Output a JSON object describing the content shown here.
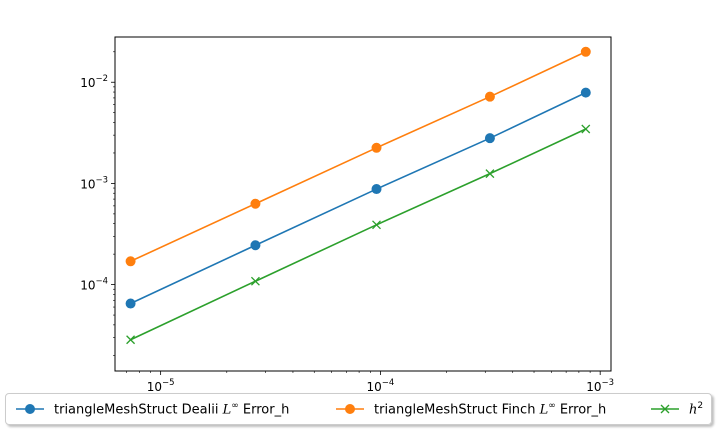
{
  "chart_data": {
    "type": "line",
    "xscale": "log",
    "yscale": "log",
    "xlim": [
      6.2e-06,
      0.00112
    ],
    "ylim": [
      1.4e-05,
      0.028
    ],
    "grid": false,
    "legend_placement": "bottom",
    "x_ticks": [
      {
        "base": "10",
        "exp": "−5",
        "value": 1e-05
      },
      {
        "base": "10",
        "exp": "−4",
        "value": 0.0001
      },
      {
        "base": "10",
        "exp": "−3",
        "value": 0.001
      }
    ],
    "y_ticks": [
      {
        "base": "10",
        "exp": "−4",
        "value": 0.0001
      },
      {
        "base": "10",
        "exp": "−3",
        "value": 0.001
      },
      {
        "base": "10",
        "exp": "−2",
        "value": 0.01
      }
    ],
    "x": [
      7.3e-06,
      2.7e-05,
      9.6e-05,
      0.000315,
      0.00086
    ],
    "series": [
      {
        "name": "triangleMeshStruct Dealii L∞ Error_h",
        "label_prefix": "triangleMeshStruct Dealii ",
        "label_math": "L",
        "label_sup": "∞",
        "label_suffix": " Error_h",
        "color": "#1f77b4",
        "marker": "circle",
        "values": [
          6.5e-05,
          0.000245,
          0.00088,
          0.0028,
          0.0079
        ]
      },
      {
        "name": "triangleMeshStruct Finch L∞ Error_h",
        "label_prefix": "triangleMeshStruct Finch ",
        "label_math": "L",
        "label_sup": "∞",
        "label_suffix": " Error_h",
        "color": "#ff7f0e",
        "marker": "circle",
        "values": [
          0.00017,
          0.00063,
          0.00225,
          0.0072,
          0.02
        ]
      },
      {
        "name": "h2",
        "label_prefix": "",
        "label_math": "h",
        "label_sup": "2",
        "label_suffix": "",
        "color": "#2ca02c",
        "marker": "x",
        "values": [
          2.85e-05,
          0.000108,
          0.00039,
          0.00125,
          0.00345
        ]
      }
    ]
  }
}
